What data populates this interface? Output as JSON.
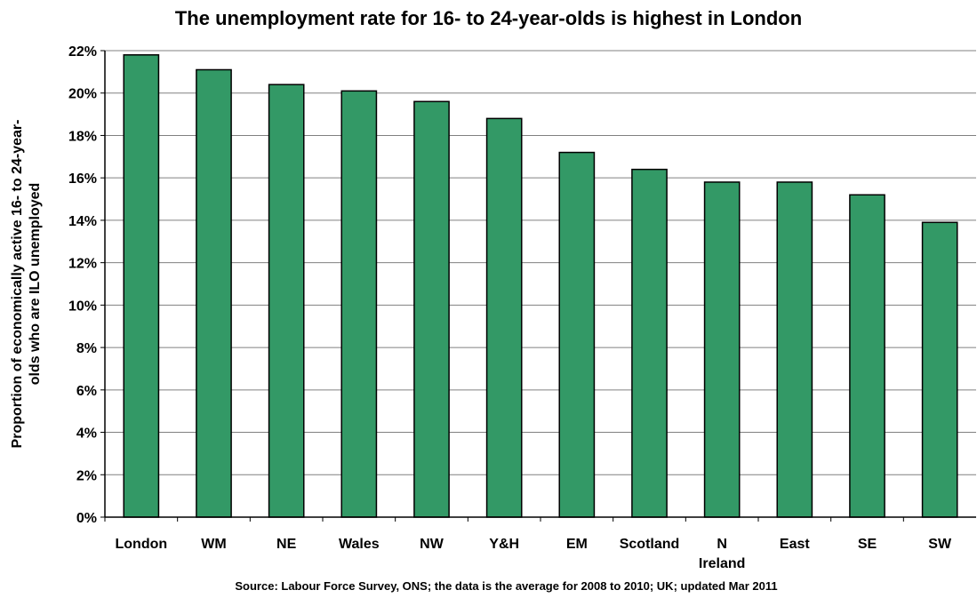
{
  "chart_data": {
    "type": "bar",
    "title": "The unemployment rate for 16- to 24-year-olds is highest in London",
    "ylabel_lines": [
      "Proportion of economically active 16- to 24-year-",
      "olds who are ILO unemployed"
    ],
    "xlabel": "",
    "source": "Source: Labour Force Survey, ONS; the data is the average for 2008 to 2010; UK; updated Mar 2011",
    "categories": [
      [
        "London"
      ],
      [
        "WM"
      ],
      [
        "NE"
      ],
      [
        "Wales"
      ],
      [
        "NW"
      ],
      [
        "Y&H"
      ],
      [
        "EM"
      ],
      [
        "Scotland"
      ],
      [
        "N",
        "Ireland"
      ],
      [
        "East"
      ],
      [
        "SE"
      ],
      [
        "SW"
      ]
    ],
    "values": [
      21.8,
      21.1,
      20.4,
      20.1,
      19.6,
      18.8,
      17.2,
      16.4,
      15.8,
      15.8,
      15.2,
      13.9
    ],
    "ylim": [
      0,
      22
    ],
    "yticks": [
      "0%",
      "2%",
      "4%",
      "6%",
      "8%",
      "10%",
      "12%",
      "14%",
      "16%",
      "18%",
      "20%",
      "22%"
    ],
    "grid": true,
    "colors": {
      "bar": "#339966",
      "bar_edge": "#000000",
      "grid": "#808080"
    }
  }
}
